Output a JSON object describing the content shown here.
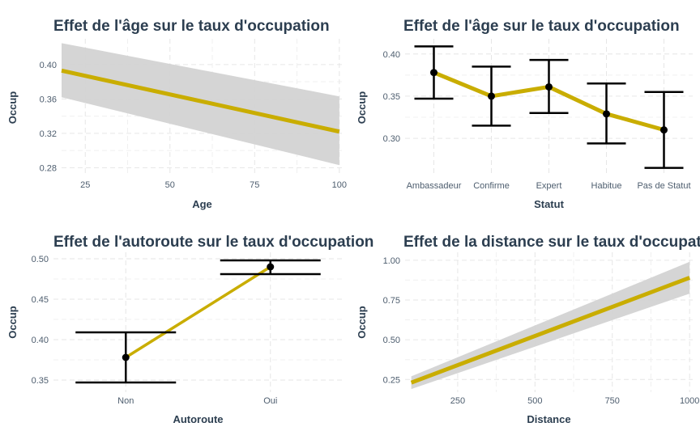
{
  "colors": {
    "line": "#c9ad00",
    "ribbon": "#d3d3d3",
    "errorbar": "#000000",
    "point": "#000000",
    "text": "#2c3e50"
  },
  "chart_data": [
    {
      "id": "age",
      "type": "line",
      "title": "Effet de l'âge sur le taux d'occupation",
      "xlabel": "Age",
      "ylabel": "Occup",
      "xlim": [
        18,
        101
      ],
      "ylim": [
        0.27,
        0.43
      ],
      "xticks": [
        25,
        50,
        75,
        100
      ],
      "yticks": [
        0.28,
        0.32,
        0.36,
        0.4
      ],
      "ytick_labels": [
        "0.28",
        "0.32",
        "0.36",
        "0.40"
      ],
      "x": [
        18,
        100
      ],
      "y": [
        0.393,
        0.322
      ],
      "ci_lower": [
        0.362,
        0.283
      ],
      "ci_upper": [
        0.425,
        0.363
      ],
      "grid": true
    },
    {
      "id": "statut",
      "type": "line",
      "title": "Effet de l'âge sur le taux d'occupation",
      "xlabel": "Statut",
      "ylabel": "Occup",
      "categories": [
        "Ambassadeur",
        "Confirme",
        "Expert",
        "Habitue",
        "Pas de Statut"
      ],
      "values": [
        0.378,
        0.35,
        0.361,
        0.329,
        0.31
      ],
      "error_lower": [
        0.347,
        0.315,
        0.33,
        0.294,
        0.265
      ],
      "error_upper": [
        0.409,
        0.385,
        0.393,
        0.365,
        0.355
      ],
      "ylim": [
        0.255,
        0.418
      ],
      "yticks": [
        0.3,
        0.35,
        0.4
      ],
      "ytick_labels": [
        "0.30",
        "0.35",
        "0.40"
      ],
      "grid": true
    },
    {
      "id": "autoroute",
      "type": "line",
      "title": "Effet de l'autoroute sur le taux d'occupation",
      "xlabel": "Autoroute",
      "ylabel": "Occup",
      "categories": [
        "Non",
        "Oui"
      ],
      "values": [
        0.378,
        0.49
      ],
      "error_lower": [
        0.347,
        0.481
      ],
      "error_upper": [
        0.409,
        0.498
      ],
      "ylim": [
        0.335,
        0.508
      ],
      "yticks": [
        0.35,
        0.4,
        0.45,
        0.5
      ],
      "ytick_labels": [
        "0.35",
        "0.40",
        "0.45",
        "0.50"
      ],
      "grid": true
    },
    {
      "id": "distance",
      "type": "line",
      "title": "Effet de la distance sur le taux d'occupation",
      "xlabel": "Distance",
      "ylabel": "Occup",
      "xlim": [
        80,
        1010
      ],
      "ylim": [
        0.17,
        1.05
      ],
      "xticks": [
        250,
        500,
        750,
        1000
      ],
      "yticks": [
        0.25,
        0.5,
        0.75,
        1.0
      ],
      "ytick_labels": [
        "0.25",
        "0.50",
        "0.75",
        "1.00"
      ],
      "x": [
        100,
        1000
      ],
      "y": [
        0.23,
        0.89
      ],
      "ci_lower": [
        0.19,
        0.79
      ],
      "ci_upper": [
        0.27,
        0.99
      ],
      "grid": true
    }
  ]
}
